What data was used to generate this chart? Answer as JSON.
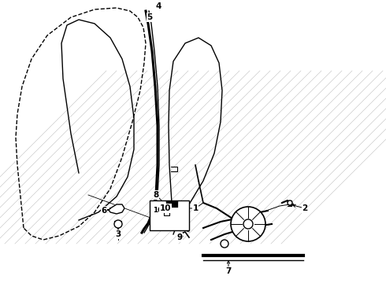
{
  "bg_color": "#ffffff",
  "line_color": "#000000",
  "fig_width": 4.9,
  "fig_height": 3.6,
  "dpi": 100,
  "door_outer_x": [
    30,
    28,
    25,
    22,
    20,
    22,
    28,
    40,
    60,
    90,
    120,
    148,
    165,
    175,
    182,
    185,
    183,
    178,
    168,
    155,
    140,
    120,
    100,
    75,
    55,
    40,
    30
  ],
  "door_outer_y": [
    290,
    270,
    240,
    210,
    175,
    145,
    110,
    75,
    45,
    22,
    12,
    10,
    14,
    22,
    35,
    55,
    80,
    115,
    155,
    200,
    240,
    270,
    288,
    300,
    305,
    300,
    290
  ],
  "glass_inner_x": [
    100,
    125,
    148,
    162,
    170,
    170,
    165,
    155,
    140,
    120,
    100,
    85,
    78,
    80,
    90,
    100
  ],
  "glass_inner_y": [
    280,
    270,
    250,
    225,
    190,
    150,
    110,
    75,
    48,
    30,
    25,
    32,
    55,
    100,
    170,
    220
  ],
  "channel_outer_x": [
    185,
    188,
    193,
    197,
    200,
    200,
    198,
    193,
    188,
    183,
    180
  ],
  "channel_outer_y": [
    14,
    30,
    65,
    110,
    160,
    210,
    248,
    272,
    284,
    291,
    296
  ],
  "channel_inner_x": [
    189,
    192,
    196,
    200,
    202,
    202,
    200,
    195,
    190,
    186,
    183
  ],
  "channel_inner_y": [
    14,
    30,
    65,
    110,
    160,
    210,
    248,
    272,
    284,
    291,
    296
  ],
  "win_glass_x": [
    220,
    225,
    240,
    258,
    272,
    280,
    282,
    278,
    268,
    252,
    235,
    220,
    215,
    214,
    215,
    218,
    220
  ],
  "win_glass_y": [
    298,
    285,
    260,
    230,
    195,
    155,
    115,
    80,
    58,
    48,
    55,
    78,
    115,
    160,
    210,
    258,
    290
  ],
  "labels": [
    [
      "4",
      201,
      8
    ],
    [
      "5",
      190,
      22
    ],
    [
      "2",
      387,
      265
    ],
    [
      "6",
      132,
      268
    ],
    [
      "3",
      150,
      298
    ],
    [
      "8",
      198,
      248
    ],
    [
      "10",
      210,
      265
    ],
    [
      "1",
      248,
      265
    ],
    [
      "9",
      228,
      302
    ],
    [
      "7",
      290,
      345
    ]
  ]
}
